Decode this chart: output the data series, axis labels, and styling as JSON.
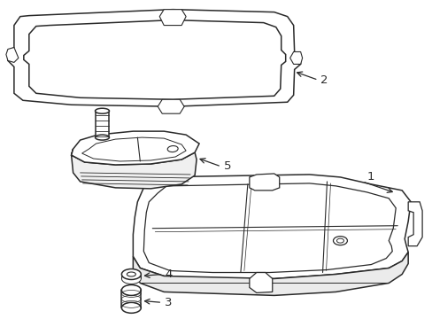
{
  "background_color": "#ffffff",
  "line_color": "#2a2a2a",
  "line_width": 1.1,
  "figsize": [
    4.89,
    3.6
  ],
  "dpi": 100
}
